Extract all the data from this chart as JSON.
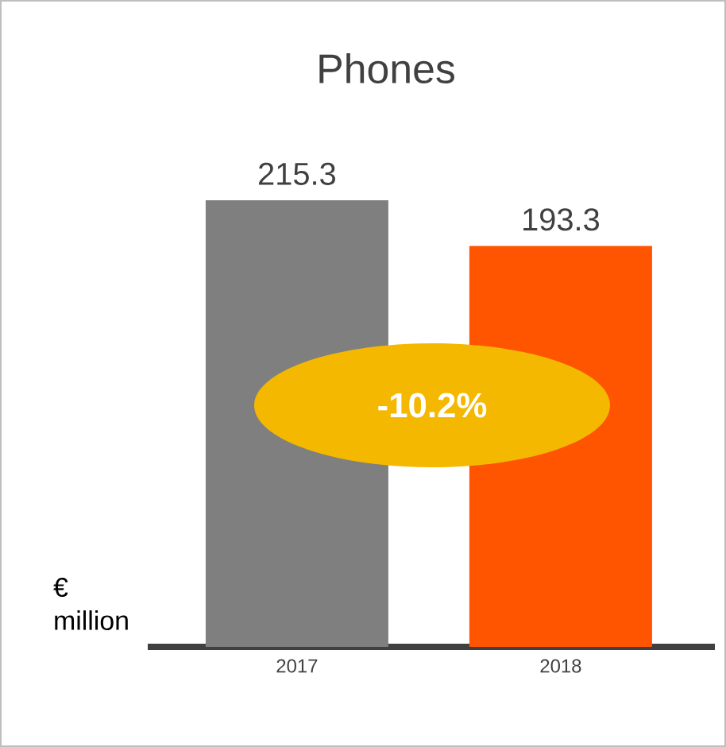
{
  "chart_data": {
    "type": "bar",
    "title": "Phones",
    "ylabel": "€ million",
    "categories": [
      "2017",
      "2018"
    ],
    "values": [
      215.3,
      193.3
    ],
    "colors": [
      "#7f7f7f",
      "#ff5500"
    ],
    "data_labels": true,
    "annotations": [
      "-10.2%"
    ]
  }
}
